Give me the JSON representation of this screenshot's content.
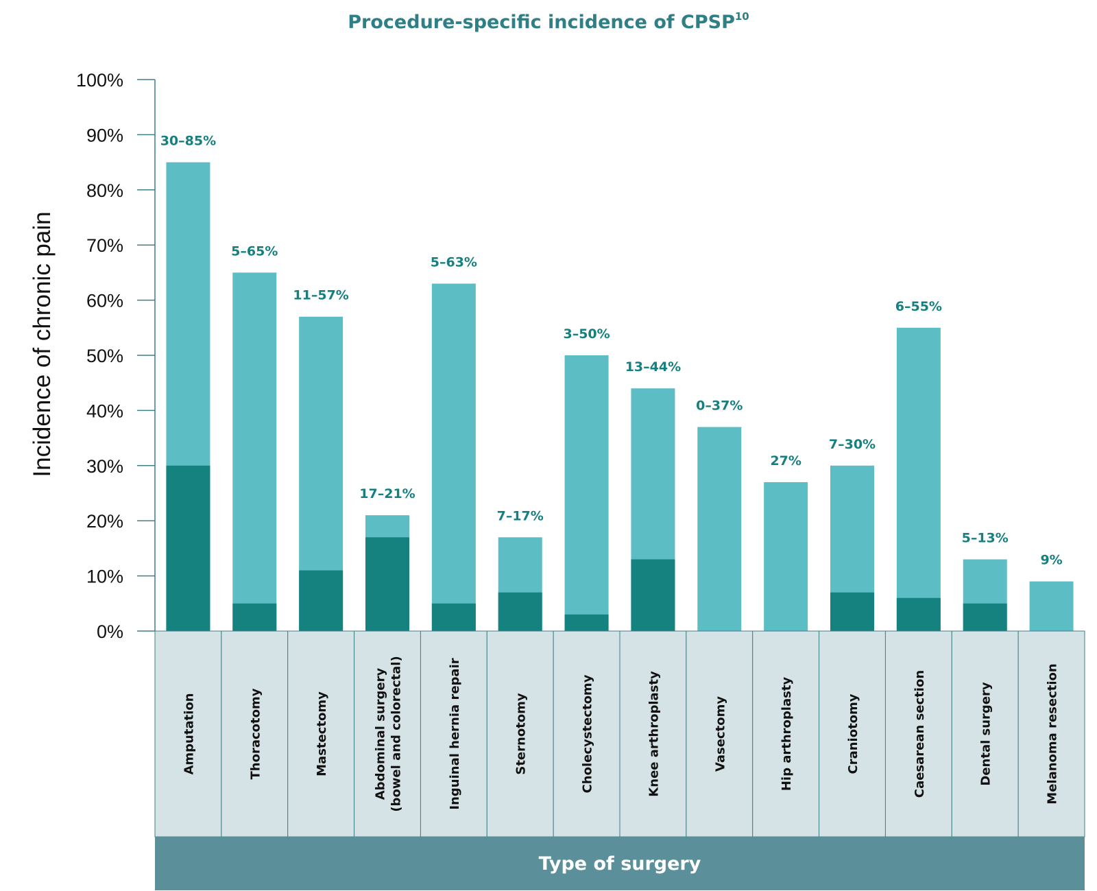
{
  "chart_data": {
    "type": "bar",
    "title": "Procedure-specific incidence of CPSP",
    "title_superscript": "10",
    "ylabel": "Incidence of chronic pain",
    "xlabel": "Type of surgery",
    "ylim": [
      0,
      100
    ],
    "yticks": [
      "0%",
      "10%",
      "20%",
      "30%",
      "40%",
      "50%",
      "60%",
      "70%",
      "80%",
      "90%",
      "100%"
    ],
    "grid": false,
    "categories": [
      [
        "Amputation"
      ],
      [
        "Thoracotomy"
      ],
      [
        "Mastectomy"
      ],
      [
        "Abdominal surgery",
        "(bowel and colorectal)"
      ],
      [
        "Inguinal hernia repair"
      ],
      [
        "Sternotomy"
      ],
      [
        "Cholecystectomy"
      ],
      [
        "Knee arthroplasty"
      ],
      [
        "Vasectomy"
      ],
      [
        "Hip arthroplasty"
      ],
      [
        "Craniotomy"
      ],
      [
        "Caesarean section"
      ],
      [
        "Dental surgery"
      ],
      [
        "Melanoma resection"
      ]
    ],
    "series": [
      {
        "role": "low",
        "values": [
          30,
          5,
          11,
          17,
          5,
          7,
          3,
          13,
          0,
          0,
          7,
          6,
          5,
          0
        ]
      },
      {
        "role": "high",
        "values": [
          85,
          65,
          57,
          21,
          63,
          17,
          50,
          44,
          37,
          27,
          30,
          55,
          13,
          9
        ]
      }
    ],
    "data_labels": [
      "30–85%",
      "5–65%",
      "11–57%",
      "17–21%",
      "5–63%",
      "7–17%",
      "3–50%",
      "13–44%",
      "0–37%",
      "27%",
      "7–30%",
      "6–55%",
      "5–13%",
      "9%"
    ],
    "colors": {
      "low": "#158280",
      "high": "#5cbec4",
      "label": "#167f7f",
      "title": "#2e7f86",
      "category_box": "#d6e3e6",
      "category_border": "#3f7f86",
      "xlabel_band": "#5b8f9a",
      "axis": "#3f7f86"
    }
  }
}
